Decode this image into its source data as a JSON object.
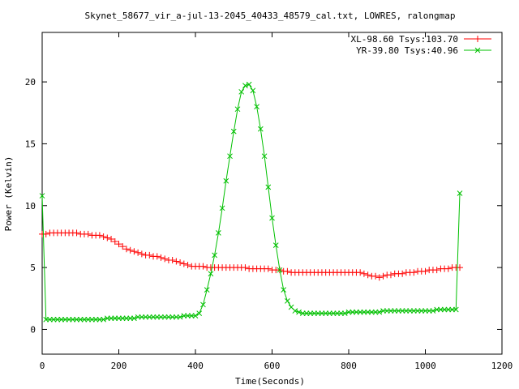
{
  "chart_data": {
    "type": "scatter",
    "title": "Skynet_58677_vir_a-jul-13-2045_40433_48579_cal.txt, LOWRES, ralongmap",
    "xlabel": "Time(Seconds)",
    "ylabel": "Power (Kelvin)",
    "xlim": [
      0,
      1200
    ],
    "ylim": [
      -2,
      24
    ],
    "xticks": [
      0,
      200,
      400,
      600,
      800,
      1000,
      1200
    ],
    "yticks": [
      0,
      5,
      10,
      15,
      20
    ],
    "xtick_labels": [
      "0",
      "200",
      "400",
      "600",
      "800",
      "1000",
      "1200"
    ],
    "ytick_labels": [
      "0",
      "5",
      "10",
      "15",
      "20"
    ],
    "grid": false,
    "legend_position": "top-right",
    "series": [
      {
        "name": "XL-98.60 Tsys:103.70",
        "color": "#ff0000",
        "marker": "plus",
        "line": false,
        "x": [
          0,
          10,
          20,
          30,
          40,
          50,
          60,
          70,
          80,
          90,
          100,
          110,
          120,
          130,
          140,
          150,
          160,
          170,
          180,
          190,
          200,
          210,
          220,
          230,
          240,
          250,
          260,
          270,
          280,
          290,
          300,
          310,
          320,
          330,
          340,
          350,
          360,
          370,
          380,
          390,
          400,
          410,
          420,
          430,
          440,
          450,
          460,
          470,
          480,
          490,
          500,
          510,
          520,
          530,
          540,
          550,
          560,
          570,
          580,
          590,
          600,
          610,
          620,
          630,
          640,
          650,
          660,
          670,
          680,
          690,
          700,
          710,
          720,
          730,
          740,
          750,
          760,
          770,
          780,
          790,
          800,
          810,
          820,
          830,
          840,
          850,
          860,
          870,
          880,
          890,
          900,
          910,
          920,
          930,
          940,
          950,
          960,
          970,
          980,
          990,
          1000,
          1010,
          1020,
          1030,
          1040,
          1050,
          1060,
          1070,
          1080,
          1090
        ],
        "y": [
          7.7,
          7.7,
          7.8,
          7.8,
          7.8,
          7.8,
          7.8,
          7.8,
          7.8,
          7.8,
          7.7,
          7.7,
          7.7,
          7.6,
          7.6,
          7.6,
          7.5,
          7.4,
          7.3,
          7.1,
          6.9,
          6.7,
          6.5,
          6.4,
          6.3,
          6.2,
          6.1,
          6.0,
          6.0,
          5.9,
          5.9,
          5.8,
          5.7,
          5.6,
          5.6,
          5.5,
          5.4,
          5.3,
          5.2,
          5.1,
          5.1,
          5.1,
          5.1,
          5.0,
          5.0,
          5.0,
          5.0,
          5.0,
          5.0,
          5.0,
          5.0,
          5.0,
          5.0,
          5.0,
          4.9,
          4.9,
          4.9,
          4.9,
          4.9,
          4.9,
          4.8,
          4.8,
          4.8,
          4.7,
          4.7,
          4.6,
          4.6,
          4.6,
          4.6,
          4.6,
          4.6,
          4.6,
          4.6,
          4.6,
          4.6,
          4.6,
          4.6,
          4.6,
          4.6,
          4.6,
          4.6,
          4.6,
          4.6,
          4.6,
          4.5,
          4.4,
          4.3,
          4.3,
          4.2,
          4.3,
          4.4,
          4.4,
          4.5,
          4.5,
          4.5,
          4.6,
          4.6,
          4.6,
          4.7,
          4.7,
          4.7,
          4.8,
          4.8,
          4.8,
          4.9,
          4.9,
          4.9,
          5.0,
          5.0,
          5.0
        ]
      },
      {
        "name": "YR-39.80 Tsys:40.96",
        "color": "#00c000",
        "marker": "cross",
        "line": true,
        "x": [
          0,
          10,
          20,
          30,
          40,
          50,
          60,
          70,
          80,
          90,
          100,
          110,
          120,
          130,
          140,
          150,
          160,
          170,
          180,
          190,
          200,
          210,
          220,
          230,
          240,
          250,
          260,
          270,
          280,
          290,
          300,
          310,
          320,
          330,
          340,
          350,
          360,
          370,
          380,
          390,
          400,
          410,
          420,
          430,
          440,
          450,
          460,
          470,
          480,
          490,
          500,
          510,
          520,
          530,
          540,
          550,
          560,
          570,
          580,
          590,
          600,
          610,
          620,
          630,
          640,
          650,
          660,
          670,
          680,
          690,
          700,
          710,
          720,
          730,
          740,
          750,
          760,
          770,
          780,
          790,
          800,
          810,
          820,
          830,
          840,
          850,
          860,
          870,
          880,
          890,
          900,
          910,
          920,
          930,
          940,
          950,
          960,
          970,
          980,
          990,
          1000,
          1010,
          1020,
          1030,
          1040,
          1050,
          1060,
          1070,
          1080,
          1090
        ],
        "y": [
          10.8,
          0.8,
          0.8,
          0.8,
          0.8,
          0.8,
          0.8,
          0.8,
          0.8,
          0.8,
          0.8,
          0.8,
          0.8,
          0.8,
          0.8,
          0.8,
          0.8,
          0.9,
          0.9,
          0.9,
          0.9,
          0.9,
          0.9,
          0.9,
          0.9,
          1.0,
          1.0,
          1.0,
          1.0,
          1.0,
          1.0,
          1.0,
          1.0,
          1.0,
          1.0,
          1.0,
          1.0,
          1.1,
          1.1,
          1.1,
          1.1,
          1.3,
          2.0,
          3.2,
          4.5,
          6.0,
          7.8,
          9.8,
          12.0,
          14.0,
          16.0,
          17.8,
          19.2,
          19.7,
          19.8,
          19.3,
          18.0,
          16.2,
          14.0,
          11.5,
          9.0,
          6.8,
          4.8,
          3.2,
          2.3,
          1.8,
          1.5,
          1.4,
          1.3,
          1.3,
          1.3,
          1.3,
          1.3,
          1.3,
          1.3,
          1.3,
          1.3,
          1.3,
          1.3,
          1.3,
          1.4,
          1.4,
          1.4,
          1.4,
          1.4,
          1.4,
          1.4,
          1.4,
          1.4,
          1.5,
          1.5,
          1.5,
          1.5,
          1.5,
          1.5,
          1.5,
          1.5,
          1.5,
          1.5,
          1.5,
          1.5,
          1.5,
          1.5,
          1.6,
          1.6,
          1.6,
          1.6,
          1.6,
          1.6,
          11.0
        ]
      }
    ]
  }
}
